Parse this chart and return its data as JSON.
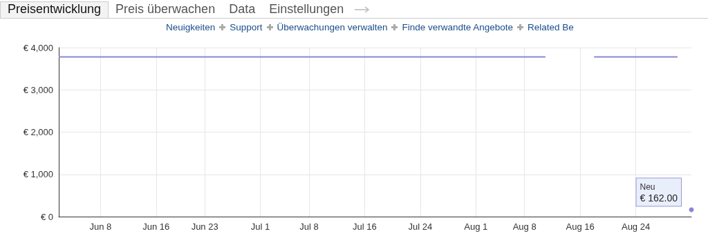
{
  "chart_data": {
    "type": "line",
    "x": [
      "--06-02",
      "--08-11",
      "--08-14",
      "--08-18",
      "--08-30",
      "--08-31",
      "--09-01"
    ],
    "series": [
      {
        "name": "Neu",
        "color": "#8a86d8",
        "values": [
          3780,
          3780,
          null,
          3780,
          3780,
          null,
          162
        ],
        "value_labels": [
          null,
          null,
          null,
          null,
          null,
          null,
          "€ 162.00"
        ]
      }
    ],
    "xlim": [
      "--06-02",
      "--09-01"
    ],
    "xticks": [
      {
        "value": "--06-08",
        "label": "Jun 8"
      },
      {
        "value": "--06-16",
        "label": "Jun 16"
      },
      {
        "value": "--06-23",
        "label": "Jun 23"
      },
      {
        "value": "--07-01",
        "label": "Jul 1"
      },
      {
        "value": "--07-08",
        "label": "Jul 8"
      },
      {
        "value": "--07-16",
        "label": "Jul 16"
      },
      {
        "value": "--07-24",
        "label": "Jul 24"
      },
      {
        "value": "--08-01",
        "label": "Aug 1"
      },
      {
        "value": "--08-08",
        "label": "Aug 8"
      },
      {
        "value": "--08-16",
        "label": "Aug 16"
      },
      {
        "value": "--08-24",
        "label": "Aug 24"
      }
    ],
    "ylim": [
      0,
      4000
    ],
    "yticks": [
      {
        "value": 0,
        "label": "€ 0"
      },
      {
        "value": 1000,
        "label": "€ 1,000"
      },
      {
        "value": 2000,
        "label": "€ 2,000"
      },
      {
        "value": 3000,
        "label": "€ 3,000"
      },
      {
        "value": 4000,
        "label": "€ 4,000"
      }
    ],
    "grid": true,
    "annotations": [
      "Preisentwicklung",
      "Preis überwachen",
      "Data",
      "Einstellungen",
      "Neuigkeiten",
      "Support",
      "Überwachungen verwalten",
      "Finde verwandte Angebote",
      "Related Be"
    ]
  }
}
